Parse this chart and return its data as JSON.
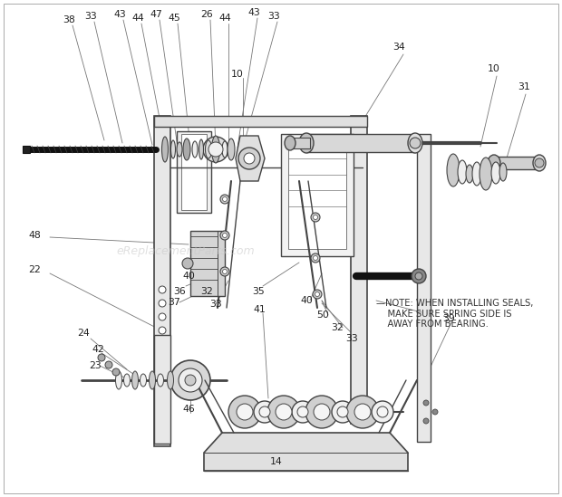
{
  "bg_color": "#ffffff",
  "watermark_text": "eReplacementParts.com",
  "watermark_color": "#c8c8c8",
  "watermark_alpha": 0.55,
  "note_text": "—NOTE: WHEN INSTALLING SEALS,\n    MAKE SURE SPRING SIDE IS\n    AWAY FROM BEARING.",
  "note_fontsize": 7.2,
  "note_color": "#333333",
  "label_fontsize": 7.8,
  "fig_width": 6.2,
  "fig_height": 5.49,
  "dpi": 100
}
